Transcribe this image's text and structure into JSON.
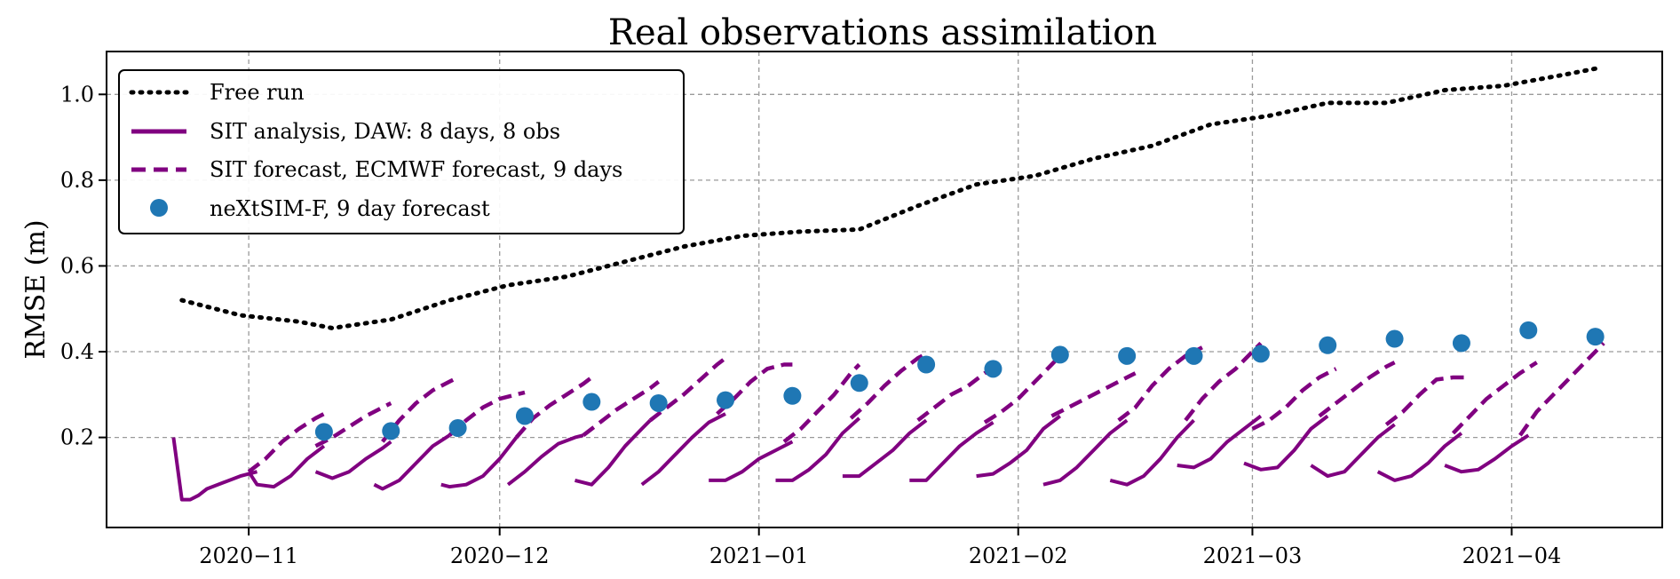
{
  "chart_data": {
    "type": "line",
    "title": "Real observations assimilation",
    "xlabel": "",
    "ylabel": "RMSE (m)",
    "ylim": [
      -0.01,
      1.1
    ],
    "xlim": [
      "2020-10-15",
      "2021-04-19"
    ],
    "grid": true,
    "legend_position": "top-left",
    "x_ticks": [
      {
        "date": "2020-11-01",
        "label": "2020−11"
      },
      {
        "date": "2020-12-01",
        "label": "2020−12"
      },
      {
        "date": "2021-01-01",
        "label": "2021−01"
      },
      {
        "date": "2021-02-01",
        "label": "2021−02"
      },
      {
        "date": "2021-03-01",
        "label": "2021−03"
      },
      {
        "date": "2021-04-01",
        "label": "2021−04"
      }
    ],
    "y_ticks": [
      {
        "value": 0.2,
        "label": "0.2"
      },
      {
        "value": 0.4,
        "label": "0.4"
      },
      {
        "value": 0.6,
        "label": "0.6"
      },
      {
        "value": 0.8,
        "label": "0.8"
      },
      {
        "value": 1.0,
        "label": "1.0"
      }
    ],
    "colors": {
      "free_run": "#000000",
      "analysis": "#800080",
      "forecast": "#800080",
      "nextsim": "#1f77b4"
    },
    "legend": [
      {
        "key": "free_run",
        "label": "Free run",
        "style": "dotted"
      },
      {
        "key": "analysis",
        "label": "SIT analysis, DAW: 8 days, 8 obs",
        "style": "solid"
      },
      {
        "key": "forecast",
        "label": "SIT forecast, ECMWF forecast, 9 days",
        "style": "dashed"
      },
      {
        "key": "nextsim",
        "label": "neXtSIM-F, 9 day forecast",
        "style": "marker"
      }
    ],
    "free_run": {
      "name": "Free run",
      "x": [
        "2020-10-24",
        "2020-10-31",
        "2020-11-07",
        "2020-11-11",
        "2020-11-18",
        "2020-11-25",
        "2020-12-02",
        "2020-12-09",
        "2020-12-16",
        "2020-12-23",
        "2020-12-30",
        "2021-01-06",
        "2021-01-13",
        "2021-01-20",
        "2021-01-27",
        "2021-02-03",
        "2021-02-10",
        "2021-02-17",
        "2021-02-24",
        "2021-03-03",
        "2021-03-10",
        "2021-03-17",
        "2021-03-24",
        "2021-03-31",
        "2021-04-07",
        "2021-04-11"
      ],
      "values": [
        0.52,
        0.485,
        0.47,
        0.455,
        0.475,
        0.52,
        0.555,
        0.575,
        0.61,
        0.645,
        0.67,
        0.68,
        0.685,
        0.74,
        0.79,
        0.81,
        0.85,
        0.88,
        0.93,
        0.95,
        0.98,
        0.98,
        1.01,
        1.02,
        1.045,
        1.06
      ]
    },
    "analysis_cycles": [
      {
        "x": [
          "2020-10-23",
          "2020-10-24",
          "2020-10-25",
          "2020-10-26",
          "2020-10-27",
          "2020-10-29",
          "2020-10-31",
          "2020-11-02"
        ],
        "values": [
          0.2,
          0.055,
          0.055,
          0.065,
          0.08,
          0.095,
          0.11,
          0.12
        ]
      },
      {
        "x": [
          "2020-11-01",
          "2020-11-02",
          "2020-11-04",
          "2020-11-06",
          "2020-11-08",
          "2020-11-10"
        ],
        "values": [
          0.12,
          0.09,
          0.085,
          0.11,
          0.15,
          0.18
        ]
      },
      {
        "x": [
          "2020-11-09",
          "2020-11-11",
          "2020-11-13",
          "2020-11-15",
          "2020-11-17",
          "2020-11-18"
        ],
        "values": [
          0.12,
          0.105,
          0.12,
          0.15,
          0.175,
          0.19
        ]
      },
      {
        "x": [
          "2020-11-16",
          "2020-11-17",
          "2020-11-19",
          "2020-11-21",
          "2020-11-23",
          "2020-11-25"
        ],
        "values": [
          0.09,
          0.08,
          0.1,
          0.14,
          0.18,
          0.205
        ]
      },
      {
        "x": [
          "2020-11-24",
          "2020-11-25",
          "2020-11-27",
          "2020-11-29",
          "2020-12-01",
          "2020-12-03"
        ],
        "values": [
          0.09,
          0.085,
          0.09,
          0.11,
          0.15,
          0.2
        ]
      },
      {
        "x": [
          "2020-12-02",
          "2020-12-04",
          "2020-12-06",
          "2020-12-08",
          "2020-12-10",
          "2020-12-11"
        ],
        "values": [
          0.09,
          0.12,
          0.155,
          0.185,
          0.2,
          0.205
        ]
      },
      {
        "x": [
          "2020-12-10",
          "2020-12-12",
          "2020-12-14",
          "2020-12-16",
          "2020-12-18",
          "2020-12-19"
        ],
        "values": [
          0.1,
          0.09,
          0.13,
          0.18,
          0.22,
          0.24
        ]
      },
      {
        "x": [
          "2020-12-18",
          "2020-12-20",
          "2020-12-22",
          "2020-12-24",
          "2020-12-26",
          "2020-12-28"
        ],
        "values": [
          0.09,
          0.12,
          0.16,
          0.2,
          0.235,
          0.255
        ]
      },
      {
        "x": [
          "2020-12-26",
          "2020-12-28",
          "2020-12-30",
          "2021-01-01",
          "2021-01-03",
          "2021-01-05"
        ],
        "values": [
          0.1,
          0.1,
          0.12,
          0.15,
          0.17,
          0.19
        ]
      },
      {
        "x": [
          "2021-01-03",
          "2021-01-05",
          "2021-01-07",
          "2021-01-09",
          "2021-01-11",
          "2021-01-13"
        ],
        "values": [
          0.1,
          0.1,
          0.125,
          0.16,
          0.21,
          0.245
        ]
      },
      {
        "x": [
          "2021-01-11",
          "2021-01-13",
          "2021-01-15",
          "2021-01-17",
          "2021-01-19",
          "2021-01-21"
        ],
        "values": [
          0.11,
          0.11,
          0.14,
          0.17,
          0.21,
          0.24
        ]
      },
      {
        "x": [
          "2021-01-19",
          "2021-01-21",
          "2021-01-23",
          "2021-01-25",
          "2021-01-27",
          "2021-01-29"
        ],
        "values": [
          0.1,
          0.1,
          0.14,
          0.18,
          0.21,
          0.235
        ]
      },
      {
        "x": [
          "2021-01-27",
          "2021-01-29",
          "2021-01-31",
          "2021-02-02",
          "2021-02-04",
          "2021-02-06"
        ],
        "values": [
          0.11,
          0.115,
          0.14,
          0.17,
          0.22,
          0.25
        ]
      },
      {
        "x": [
          "2021-02-04",
          "2021-02-06",
          "2021-02-08",
          "2021-02-10",
          "2021-02-12",
          "2021-02-14"
        ],
        "values": [
          0.09,
          0.1,
          0.13,
          0.17,
          0.21,
          0.24
        ]
      },
      {
        "x": [
          "2021-02-12",
          "2021-02-14",
          "2021-02-16",
          "2021-02-18",
          "2021-02-20",
          "2021-02-22"
        ],
        "values": [
          0.1,
          0.09,
          0.11,
          0.15,
          0.2,
          0.24
        ]
      },
      {
        "x": [
          "2021-02-20",
          "2021-02-22",
          "2021-02-24",
          "2021-02-26",
          "2021-02-28",
          "2021-03-02"
        ],
        "values": [
          0.135,
          0.13,
          0.15,
          0.19,
          0.22,
          0.25
        ]
      },
      {
        "x": [
          "2021-02-28",
          "2021-03-02",
          "2021-03-04",
          "2021-03-06",
          "2021-03-08",
          "2021-03-10"
        ],
        "values": [
          0.14,
          0.125,
          0.13,
          0.17,
          0.22,
          0.25
        ]
      },
      {
        "x": [
          "2021-03-08",
          "2021-03-10",
          "2021-03-12",
          "2021-03-14",
          "2021-03-16",
          "2021-03-18"
        ],
        "values": [
          0.135,
          0.11,
          0.12,
          0.16,
          0.2,
          0.23
        ]
      },
      {
        "x": [
          "2021-03-16",
          "2021-03-18",
          "2021-03-20",
          "2021-03-22",
          "2021-03-24",
          "2021-03-26"
        ],
        "values": [
          0.12,
          0.1,
          0.11,
          0.14,
          0.18,
          0.21
        ]
      },
      {
        "x": [
          "2021-03-24",
          "2021-03-26",
          "2021-03-28",
          "2021-03-30",
          "2021-04-01",
          "2021-04-03"
        ],
        "values": [
          0.135,
          0.12,
          0.125,
          0.15,
          0.18,
          0.205
        ]
      }
    ],
    "forecast_cycles": [
      {
        "x": [
          "2020-11-01",
          "2020-11-03",
          "2020-11-05",
          "2020-11-07",
          "2020-11-09",
          "2020-11-10"
        ],
        "values": [
          0.12,
          0.15,
          0.19,
          0.22,
          0.245,
          0.255
        ]
      },
      {
        "x": [
          "2020-11-09",
          "2020-11-11",
          "2020-11-13",
          "2020-11-15",
          "2020-11-17",
          "2020-11-18"
        ],
        "values": [
          0.18,
          0.2,
          0.225,
          0.25,
          0.27,
          0.28
        ]
      },
      {
        "x": [
          "2020-11-17",
          "2020-11-19",
          "2020-11-21",
          "2020-11-23",
          "2020-11-25",
          "2020-11-26"
        ],
        "values": [
          0.19,
          0.24,
          0.28,
          0.31,
          0.33,
          0.34
        ]
      },
      {
        "x": [
          "2020-11-25",
          "2020-11-27",
          "2020-11-29",
          "2020-12-01",
          "2020-12-03",
          "2020-12-04"
        ],
        "values": [
          0.205,
          0.24,
          0.27,
          0.29,
          0.3,
          0.305
        ]
      },
      {
        "x": [
          "2020-12-03",
          "2020-12-05",
          "2020-12-07",
          "2020-12-09",
          "2020-12-11",
          "2020-12-12"
        ],
        "values": [
          0.2,
          0.245,
          0.275,
          0.3,
          0.325,
          0.34
        ]
      },
      {
        "x": [
          "2020-12-11",
          "2020-12-13",
          "2020-12-15",
          "2020-12-17",
          "2020-12-19",
          "2020-12-20"
        ],
        "values": [
          0.205,
          0.235,
          0.265,
          0.29,
          0.315,
          0.33
        ]
      },
      {
        "x": [
          "2020-12-19",
          "2020-12-21",
          "2020-12-23",
          "2020-12-25",
          "2020-12-27",
          "2020-12-28"
        ],
        "values": [
          0.24,
          0.27,
          0.3,
          0.335,
          0.37,
          0.385
        ]
      },
      {
        "x": [
          "2020-12-27",
          "2020-12-29",
          "2020-12-31",
          "2021-01-02",
          "2021-01-04",
          "2021-01-05"
        ],
        "values": [
          0.255,
          0.29,
          0.33,
          0.36,
          0.37,
          0.37
        ]
      },
      {
        "x": [
          "2021-01-04",
          "2021-01-06",
          "2021-01-08",
          "2021-01-10",
          "2021-01-12",
          "2021-01-13"
        ],
        "values": [
          0.19,
          0.22,
          0.26,
          0.3,
          0.35,
          0.37
        ]
      },
      {
        "x": [
          "2021-01-12",
          "2021-01-14",
          "2021-01-16",
          "2021-01-18",
          "2021-01-20",
          "2021-01-21"
        ],
        "values": [
          0.245,
          0.28,
          0.32,
          0.355,
          0.385,
          0.395
        ]
      },
      {
        "x": [
          "2021-01-20",
          "2021-01-22",
          "2021-01-24",
          "2021-01-26",
          "2021-01-28",
          "2021-01-29"
        ],
        "values": [
          0.24,
          0.27,
          0.3,
          0.32,
          0.35,
          0.36
        ]
      },
      {
        "x": [
          "2021-01-28",
          "2021-01-30",
          "2021-02-01",
          "2021-02-03",
          "2021-02-05",
          "2021-02-06"
        ],
        "values": [
          0.235,
          0.26,
          0.29,
          0.33,
          0.37,
          0.39
        ]
      },
      {
        "x": [
          "2021-02-05",
          "2021-02-07",
          "2021-02-09",
          "2021-02-11",
          "2021-02-13",
          "2021-02-15"
        ],
        "values": [
          0.25,
          0.27,
          0.29,
          0.31,
          0.33,
          0.35
        ]
      },
      {
        "x": [
          "2021-02-13",
          "2021-02-15",
          "2021-02-17",
          "2021-02-19",
          "2021-02-21",
          "2021-02-23"
        ],
        "values": [
          0.24,
          0.27,
          0.32,
          0.36,
          0.39,
          0.41
        ]
      },
      {
        "x": [
          "2021-02-21",
          "2021-02-23",
          "2021-02-25",
          "2021-02-27",
          "2021-03-01",
          "2021-03-02"
        ],
        "values": [
          0.24,
          0.29,
          0.33,
          0.36,
          0.4,
          0.42
        ]
      },
      {
        "x": [
          "2021-03-01",
          "2021-03-03",
          "2021-03-05",
          "2021-03-07",
          "2021-03-09",
          "2021-03-11"
        ],
        "values": [
          0.22,
          0.24,
          0.27,
          0.31,
          0.34,
          0.36
        ]
      },
      {
        "x": [
          "2021-03-09",
          "2021-03-11",
          "2021-03-13",
          "2021-03-15",
          "2021-03-17",
          "2021-03-18"
        ],
        "values": [
          0.25,
          0.28,
          0.31,
          0.34,
          0.365,
          0.375
        ]
      },
      {
        "x": [
          "2021-03-17",
          "2021-03-19",
          "2021-03-21",
          "2021-03-23",
          "2021-03-25",
          "2021-03-27"
        ],
        "values": [
          0.23,
          0.26,
          0.3,
          0.335,
          0.34,
          0.34
        ]
      },
      {
        "x": [
          "2021-03-25",
          "2021-03-27",
          "2021-03-29",
          "2021-03-31",
          "2021-04-02",
          "2021-04-04"
        ],
        "values": [
          0.21,
          0.25,
          0.29,
          0.32,
          0.35,
          0.375
        ]
      },
      {
        "x": [
          "2021-04-02",
          "2021-04-04",
          "2021-04-06",
          "2021-04-08",
          "2021-04-10",
          "2021-04-12"
        ],
        "values": [
          0.205,
          0.26,
          0.3,
          0.34,
          0.38,
          0.42
        ]
      }
    ],
    "nextsim": {
      "name": "neXtSIM-F, 9 day forecast",
      "x": [
        "2020-11-10",
        "2020-11-18",
        "2020-11-26",
        "2020-12-04",
        "2020-12-12",
        "2020-12-20",
        "2020-12-28",
        "2021-01-05",
        "2021-01-13",
        "2021-01-21",
        "2021-01-29",
        "2021-02-06",
        "2021-02-14",
        "2021-02-22",
        "2021-03-02",
        "2021-03-10",
        "2021-03-18",
        "2021-03-26",
        "2021-04-03",
        "2021-04-11"
      ],
      "values": [
        0.213,
        0.215,
        0.222,
        0.25,
        0.283,
        0.28,
        0.287,
        0.297,
        0.327,
        0.37,
        0.36,
        0.393,
        0.39,
        0.39,
        0.395,
        0.415,
        0.43,
        0.42,
        0.45,
        0.435
      ]
    }
  }
}
